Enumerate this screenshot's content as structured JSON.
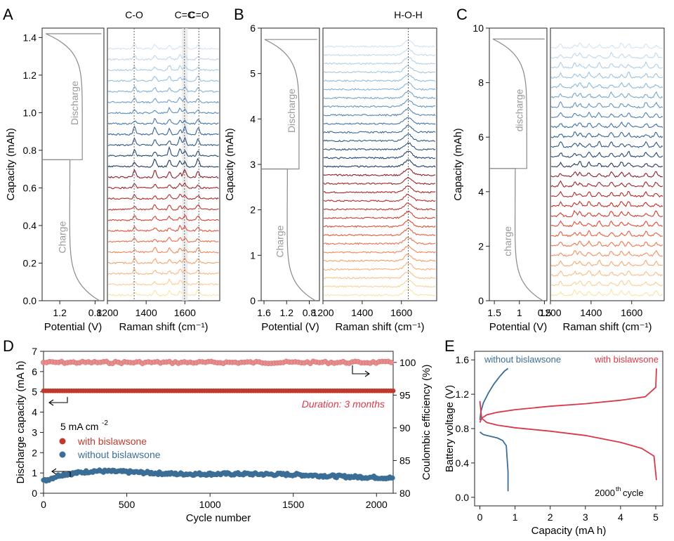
{
  "panel_labels": {
    "A": "A",
    "B": "B",
    "C": "C",
    "D": "D",
    "E": "E"
  },
  "chart_data": [
    {
      "id": "A",
      "type": "line",
      "left": {
        "xlabel": "Potential (V)",
        "ylabel": "Capacity (mAh)",
        "xlim": [
          0.7,
          1.4
        ],
        "ylim": [
          0,
          1.45
        ],
        "xticks": [
          1.2,
          0.8
        ],
        "yticks": [
          0.0,
          0.2,
          0.4,
          0.6,
          0.8,
          1.0,
          1.2,
          1.4
        ],
        "ytick_labels": [
          "0.0",
          "0.2",
          "0.4",
          "0.6",
          "0.8",
          "1.0",
          "1.2",
          "1.4"
        ],
        "capacity_max": 1.42,
        "half": 0.75,
        "charge_label": "Charge",
        "discharge_label": "Discharge"
      },
      "right": {
        "xlabel": "Raman shift (cm⁻¹)",
        "xlim": [
          1200,
          1780
        ],
        "xticks": [
          1200,
          1400,
          1600
        ],
        "peaks": [
          1340,
          1445,
          1520,
          1575,
          1600,
          1668
        ],
        "n_spectra": 24,
        "markers": [
          {
            "label": "C-O",
            "x": 1338
          },
          {
            "label": "C=C",
            "x": 1598
          },
          {
            "label": "C=O",
            "x": 1672
          }
        ],
        "band": [
          1585,
          1615
        ]
      }
    },
    {
      "id": "B",
      "type": "line",
      "left": {
        "xlabel": "Potential (V)",
        "ylabel": "Capacity (mAh)",
        "xlim": [
          0.62,
          1.65
        ],
        "ylim": [
          0,
          6
        ],
        "xticks": [
          1.6,
          1.2,
          0.8
        ],
        "yticks": [
          0,
          1,
          2,
          3,
          4,
          5,
          6
        ],
        "ytick_labels": [
          "0",
          "1",
          "2",
          "3",
          "4",
          "5",
          "6"
        ],
        "capacity_max": 5.75,
        "half": 2.9,
        "charge_label": "Charge",
        "discharge_label": "Discharge"
      },
      "right": {
        "xlabel": "Raman shift (cm⁻¹)",
        "xlim": [
          1200,
          1780
        ],
        "xticks": [
          1200,
          1400,
          1600
        ],
        "peaks": [
          1635
        ],
        "n_spectra": 30,
        "markers": [
          {
            "label": "H-O-H",
            "x": 1635
          }
        ]
      }
    },
    {
      "id": "C",
      "type": "line",
      "left": {
        "xlabel": "Potential (V)",
        "ylabel": "Capacity (mAh)",
        "xlim": [
          0.45,
          1.6
        ],
        "ylim": [
          0,
          10
        ],
        "xticks": [
          1.5,
          1.0,
          0.5
        ],
        "yticks": [
          0,
          2,
          4,
          6,
          8,
          10
        ],
        "ytick_labels": [
          "0",
          "2",
          "4",
          "6",
          "8",
          "10"
        ],
        "capacity_max": 9.6,
        "half": 4.85,
        "charge_label": "charge",
        "discharge_label": "discharge"
      },
      "right": {
        "xlabel": "Raman shift (cm⁻¹)",
        "xlim": [
          1200,
          1760
        ],
        "xticks": [
          1200,
          1400,
          1600
        ],
        "peaks": [
          1250,
          1320,
          1345,
          1390,
          1440,
          1500,
          1550,
          1585,
          1670,
          1720
        ],
        "n_spectra": 26,
        "markers": []
      }
    },
    {
      "id": "D",
      "type": "scatter",
      "xlabel": "Cycle number",
      "ylabel": "Discharge capacity (mA h)",
      "y2label": "Coulombic efficiency (%)",
      "xlim": [
        0,
        2100
      ],
      "ylim": [
        0,
        7
      ],
      "y2lim": [
        80,
        101.7
      ],
      "xticks": [
        0,
        500,
        1000,
        1500,
        2000
      ],
      "yticks": [
        0,
        1,
        2,
        3,
        4,
        5,
        6,
        7
      ],
      "y2ticks": [
        80,
        85,
        90,
        95,
        100
      ],
      "condition_label": "5 mA cm",
      "condition_sup": "-2",
      "annotation": "Duration: 3 months",
      "series": [
        {
          "name": "with bislawsone",
          "color": "#c0392b",
          "axis": "left",
          "value": 5.05
        },
        {
          "name": "without bislawsone",
          "color": "#3b6e96",
          "axis": "left",
          "x": [
            0,
            100,
            300,
            500,
            800,
            1200,
            1500,
            1800,
            2000,
            2100
          ],
          "values": [
            0.6,
            0.9,
            1.1,
            1.05,
            0.95,
            0.95,
            0.92,
            0.82,
            0.78,
            0.75
          ]
        },
        {
          "name": "coulombic efficiency",
          "color": "#e88b8b",
          "axis": "right",
          "value": 100
        }
      ]
    },
    {
      "id": "E",
      "type": "line",
      "xlabel": "Capacity (mA h)",
      "ylabel": "Battery voltage (V)",
      "xlim": [
        -0.15,
        5.2
      ],
      "ylim": [
        -0.1,
        1.7
      ],
      "xticks": [
        0,
        1,
        2,
        3,
        4,
        5
      ],
      "yticks": [
        0.0,
        0.4,
        0.8,
        1.2,
        1.6
      ],
      "ytick_labels": [
        "0.0",
        "0.4",
        "0.8",
        "1.2",
        "1.6"
      ],
      "cycle_label": "2000",
      "cycle_sup": "th",
      "cycle_suffix": " cycle",
      "series": [
        {
          "name": "without bislawsone",
          "color": "#3b6e96",
          "charge": {
            "x": [
              0,
              0.03,
              0.1,
              0.25,
              0.4,
              0.55,
              0.7,
              0.8
            ],
            "y": [
              0.9,
              1.0,
              1.1,
              1.22,
              1.32,
              1.4,
              1.47,
              1.5
            ]
          },
          "discharge": {
            "x": [
              0,
              0.1,
              0.3,
              0.5,
              0.65,
              0.75,
              0.8,
              0.8
            ],
            "y": [
              0.76,
              0.73,
              0.71,
              0.69,
              0.66,
              0.6,
              0.3,
              0.07
            ]
          }
        },
        {
          "name": "with bislawsone",
          "color": "#d9384a",
          "charge": {
            "x": [
              0,
              0.05,
              0.2,
              0.5,
              1,
              2,
              3,
              4,
              4.7,
              5.0,
              5.02
            ],
            "y": [
              0.87,
              0.92,
              0.96,
              0.99,
              1.02,
              1.06,
              1.09,
              1.13,
              1.17,
              1.28,
              1.5
            ]
          },
          "discharge": {
            "x": [
              0,
              0.05,
              0.2,
              0.5,
              1,
              2,
              3,
              4,
              4.6,
              4.95,
              5.02
            ],
            "y": [
              1.12,
              0.92,
              0.87,
              0.84,
              0.81,
              0.77,
              0.72,
              0.64,
              0.57,
              0.48,
              0.2
            ]
          }
        }
      ]
    }
  ]
}
